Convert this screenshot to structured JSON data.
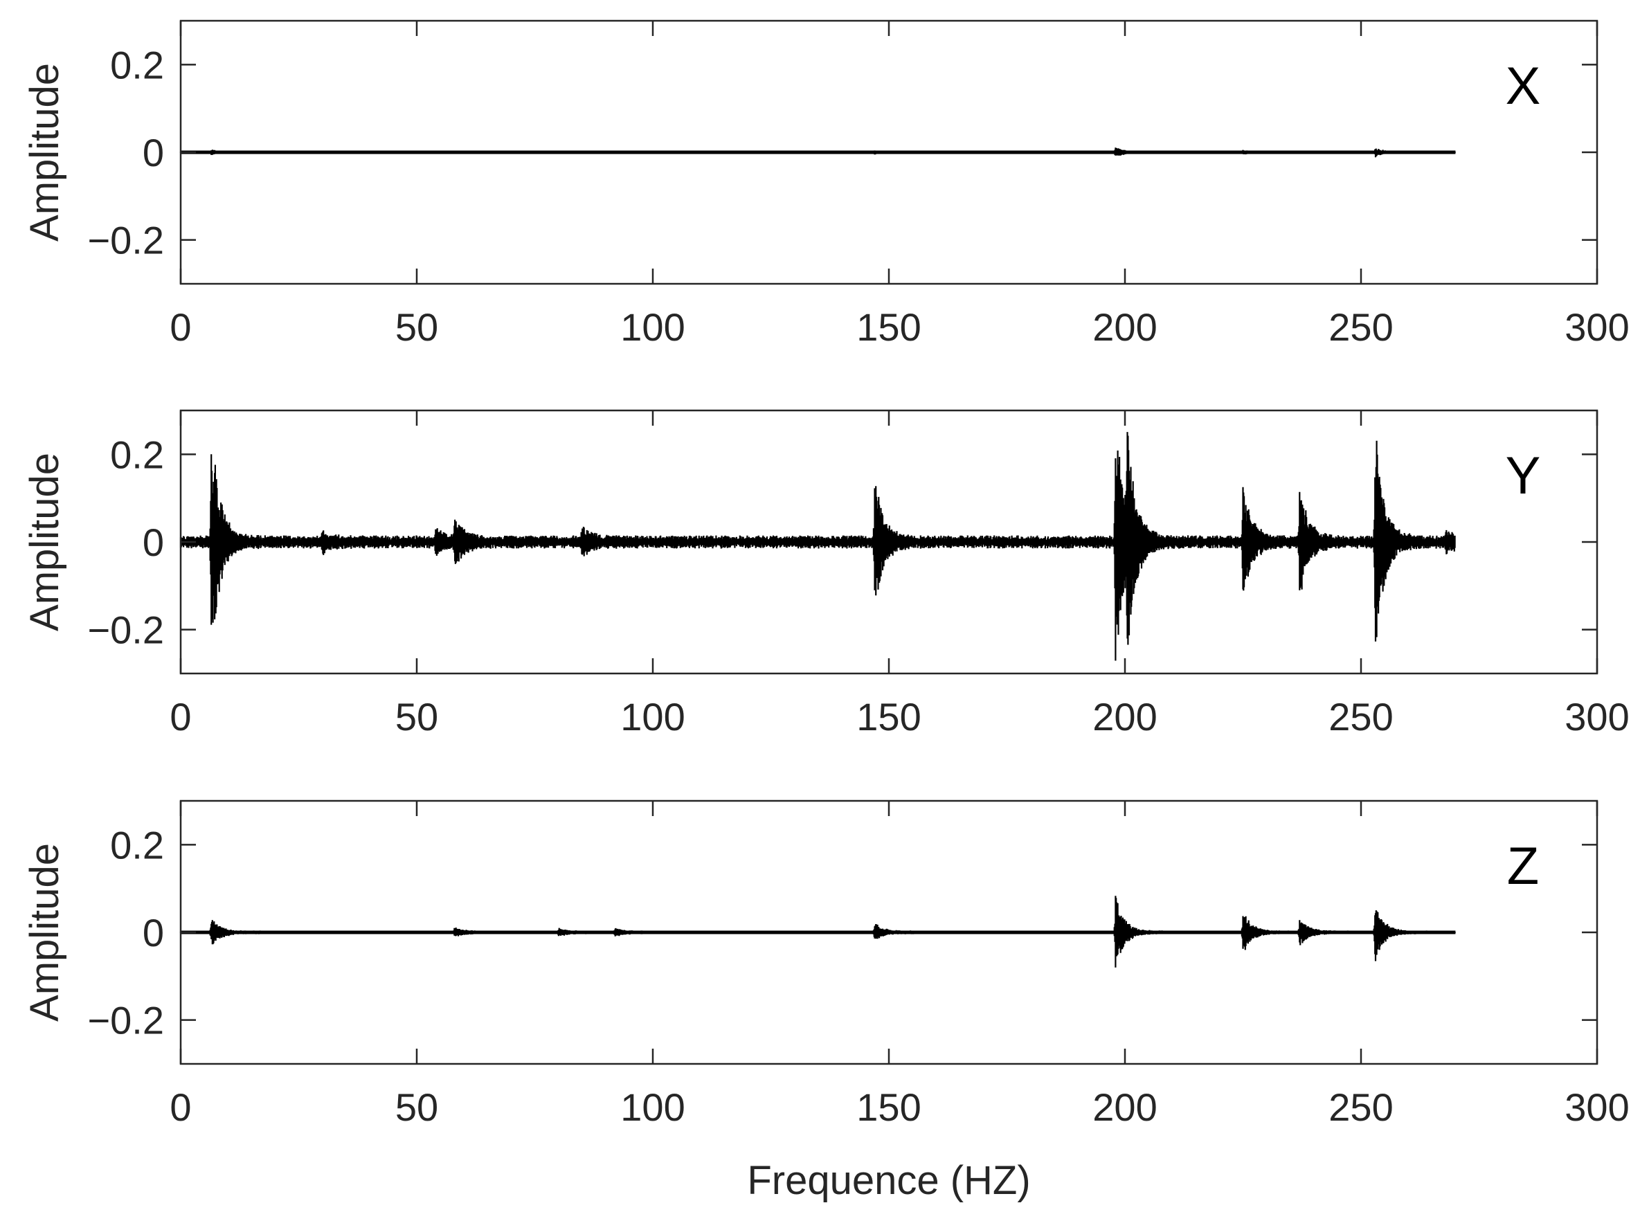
{
  "chart_data": [
    {
      "type": "line",
      "panel_label": "X",
      "ylabel": "Amplitude",
      "xlabel": "",
      "xlim": [
        0,
        300
      ],
      "ylim": [
        -0.3,
        0.3
      ],
      "xticks": [
        0,
        50,
        100,
        150,
        200,
        250,
        300
      ],
      "yticks": [
        0.2,
        0,
        -0.2
      ],
      "xtick_labels": [
        "0",
        "50",
        "100",
        "150",
        "200",
        "250",
        "300"
      ],
      "ytick_labels": [
        "0.2",
        "0",
        "−0.2"
      ],
      "grid": false,
      "line_color": "#000000",
      "x_end": 270,
      "baseline_noise": 0.002,
      "bursts": [
        {
          "x": 6.5,
          "amplitude": 0.006
        },
        {
          "x": 147,
          "amplitude": 0.004
        },
        {
          "x": 198,
          "amplitude": 0.012
        },
        {
          "x": 225,
          "amplitude": 0.005
        },
        {
          "x": 253,
          "amplitude": 0.01
        }
      ]
    },
    {
      "type": "line",
      "panel_label": "Y",
      "ylabel": "Amplitude",
      "xlabel": "",
      "xlim": [
        0,
        300
      ],
      "ylim": [
        -0.3,
        0.3
      ],
      "xticks": [
        0,
        50,
        100,
        150,
        200,
        250,
        300
      ],
      "yticks": [
        0.2,
        0,
        -0.2
      ],
      "xtick_labels": [
        "0",
        "50",
        "100",
        "150",
        "200",
        "250",
        "300"
      ],
      "ytick_labels": [
        "0.2",
        "0",
        "−0.2"
      ],
      "grid": false,
      "line_color": "#000000",
      "x_end": 270,
      "baseline_noise": 0.015,
      "bursts": [
        {
          "x": 6.5,
          "amplitude": 0.27
        },
        {
          "x": 30,
          "amplitude": 0.02
        },
        {
          "x": 54,
          "amplitude": 0.025
        },
        {
          "x": 58,
          "amplitude": 0.06
        },
        {
          "x": 85,
          "amplitude": 0.03
        },
        {
          "x": 147,
          "amplitude": 0.15
        },
        {
          "x": 198,
          "amplitude": 0.3
        },
        {
          "x": 200.5,
          "amplitude": 0.2
        },
        {
          "x": 225,
          "amplitude": 0.13
        },
        {
          "x": 237,
          "amplitude": 0.13
        },
        {
          "x": 253,
          "amplitude": 0.27
        },
        {
          "x": 268,
          "amplitude": 0.02
        }
      ]
    },
    {
      "type": "line",
      "panel_label": "Z",
      "ylabel": "Amplitude",
      "xlabel": "Frequence (HZ)",
      "xlim": [
        0,
        300
      ],
      "ylim": [
        -0.3,
        0.3
      ],
      "xticks": [
        0,
        50,
        100,
        150,
        200,
        250,
        300
      ],
      "yticks": [
        0.2,
        0,
        -0.2
      ],
      "xtick_labels": [
        "0",
        "50",
        "100",
        "150",
        "200",
        "250",
        "300"
      ],
      "ytick_labels": [
        "0.2",
        "0",
        "−0.2"
      ],
      "grid": false,
      "line_color": "#000000",
      "x_end": 270,
      "baseline_noise": 0.004,
      "bursts": [
        {
          "x": 6.5,
          "amplitude": 0.035
        },
        {
          "x": 58,
          "amplitude": 0.01
        },
        {
          "x": 80,
          "amplitude": 0.008
        },
        {
          "x": 92,
          "amplitude": 0.008
        },
        {
          "x": 147,
          "amplitude": 0.02
        },
        {
          "x": 198,
          "amplitude": 0.085
        },
        {
          "x": 225,
          "amplitude": 0.05
        },
        {
          "x": 237,
          "amplitude": 0.033
        },
        {
          "x": 253,
          "amplitude": 0.065
        }
      ]
    }
  ]
}
